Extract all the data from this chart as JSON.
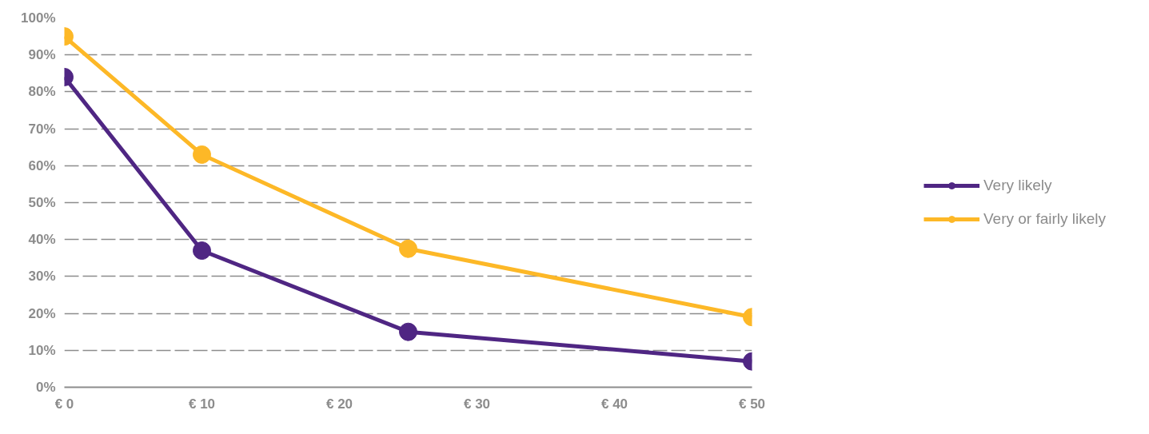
{
  "chart_data": {
    "type": "line",
    "x": [
      0,
      10,
      25,
      50
    ],
    "series": [
      {
        "name": "Very likely",
        "color": "#4f2683",
        "values": [
          84,
          37,
          15,
          7
        ]
      },
      {
        "name": "Very or fairly likely",
        "color": "#fdb827",
        "values": [
          95,
          63,
          37.5,
          19
        ]
      }
    ],
    "xlim": [
      0,
      50
    ],
    "ylim": [
      0,
      100
    ],
    "xticks": [
      {
        "value": 0,
        "label": "€ 0"
      },
      {
        "value": 10,
        "label": "€ 10"
      },
      {
        "value": 20,
        "label": "€ 20"
      },
      {
        "value": 30,
        "label": "€ 30"
      },
      {
        "value": 40,
        "label": "€ 40"
      },
      {
        "value": 50,
        "label": "€ 50"
      }
    ],
    "yticks": [
      {
        "value": 0,
        "label": "0%"
      },
      {
        "value": 10,
        "label": "10%"
      },
      {
        "value": 20,
        "label": "20%"
      },
      {
        "value": 30,
        "label": "30%"
      },
      {
        "value": 40,
        "label": "40%"
      },
      {
        "value": 50,
        "label": "50%"
      },
      {
        "value": 60,
        "label": "60%"
      },
      {
        "value": 70,
        "label": "70%"
      },
      {
        "value": 80,
        "label": "80%"
      },
      {
        "value": 90,
        "label": "90%"
      },
      {
        "value": 100,
        "label": "100%"
      }
    ],
    "grid": "y",
    "legend": "right",
    "marker": "circle",
    "line_style": "solid"
  }
}
